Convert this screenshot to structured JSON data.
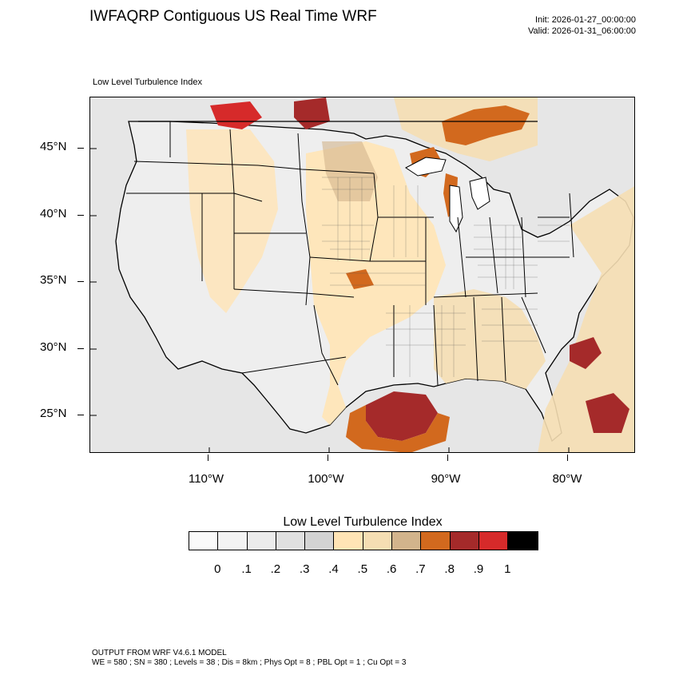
{
  "header": {
    "title": "IWFAQRP Contiguous US Real Time WRF",
    "init": "Init: 2026-01-27_00:00:00",
    "valid": "Valid: 2026-01-31_06:00:00"
  },
  "panel": {
    "label": "Low Level Turbulence Index"
  },
  "map": {
    "lat_ticks": [
      "45°N",
      "40°N",
      "35°N",
      "30°N",
      "25°N"
    ],
    "lon_ticks": [
      "110°W",
      "100°W",
      "90°W",
      "80°W"
    ],
    "extent": {
      "lon_min": -119.6,
      "lon_max": -74.7,
      "lat_min": 22.0,
      "lat_max": 48.9
    },
    "background_color": "#e8e8e8",
    "land_color": "#ececec",
    "boundary_color": "#000000"
  },
  "colorbar": {
    "title": "Low Level Turbulence Index",
    "colors": [
      "#fafafa",
      "#f3f3f3",
      "#ececec",
      "#e0e0e0",
      "#d3d3d3",
      "#ffe4b5",
      "#f5deb3",
      "#d2b48c",
      "#d2691e",
      "#a52a2a",
      "#d62a2a",
      "#000000"
    ],
    "labels": [
      "0",
      ".1",
      ".2",
      ".3",
      ".4",
      ".5",
      ".6",
      ".7",
      ".8",
      ".9",
      "1"
    ]
  },
  "footer": {
    "line1": "OUTPUT FROM WRF V4.6.1 MODEL",
    "line2": "WE = 580 ; SN = 380 ; Levels = 38 ; Dis = 8km ; Phys Opt = 8 ; PBL Opt = 1 ; Cu Opt = 3"
  }
}
